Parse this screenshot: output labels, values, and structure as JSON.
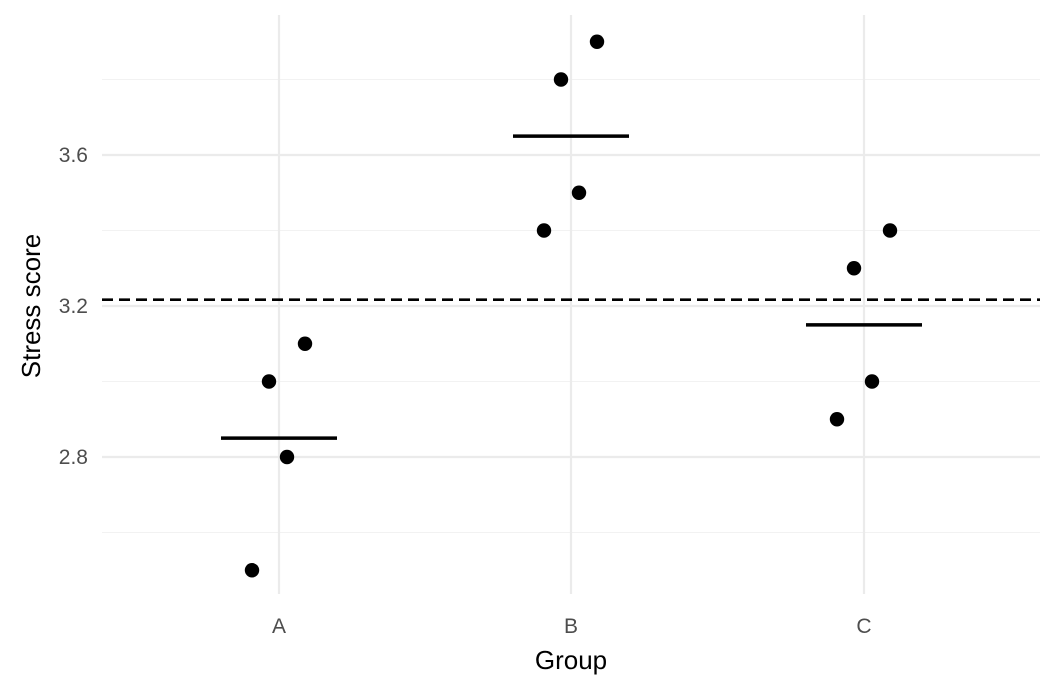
{
  "chart_data": {
    "type": "scatter",
    "xlabel": "Group",
    "ylabel": "Stress score",
    "categories": [
      "A",
      "B",
      "C"
    ],
    "ylim": [
      2.5,
      3.9
    ],
    "yticks": [
      2.8,
      3.2,
      3.6
    ],
    "grid": true,
    "series": [
      {
        "points": [
          {
            "category": "A",
            "y": 2.5
          },
          {
            "category": "A",
            "y": 3.0
          },
          {
            "category": "A",
            "y": 2.8
          },
          {
            "category": "A",
            "y": 3.1
          },
          {
            "category": "B",
            "y": 3.4
          },
          {
            "category": "B",
            "y": 3.8
          },
          {
            "category": "B",
            "y": 3.5
          },
          {
            "category": "B",
            "y": 3.9
          },
          {
            "category": "C",
            "y": 2.9
          },
          {
            "category": "C",
            "y": 3.3
          },
          {
            "category": "C",
            "y": 3.0
          },
          {
            "category": "C",
            "y": 3.4
          }
        ]
      }
    ],
    "group_means": [
      {
        "category": "A",
        "y": 2.85
      },
      {
        "category": "B",
        "y": 3.65
      },
      {
        "category": "C",
        "y": 3.15
      }
    ],
    "reference_line": {
      "y": 3.2167,
      "style": "dashed"
    },
    "colors": {
      "points": "#000000",
      "mean_lines": "#000000",
      "reference_line": "#000000",
      "grid_major": "#ebebeb",
      "grid_minor": "#f2f2f2",
      "tick_text": "#4d4d4d",
      "axis_title_text": "#000000"
    }
  }
}
